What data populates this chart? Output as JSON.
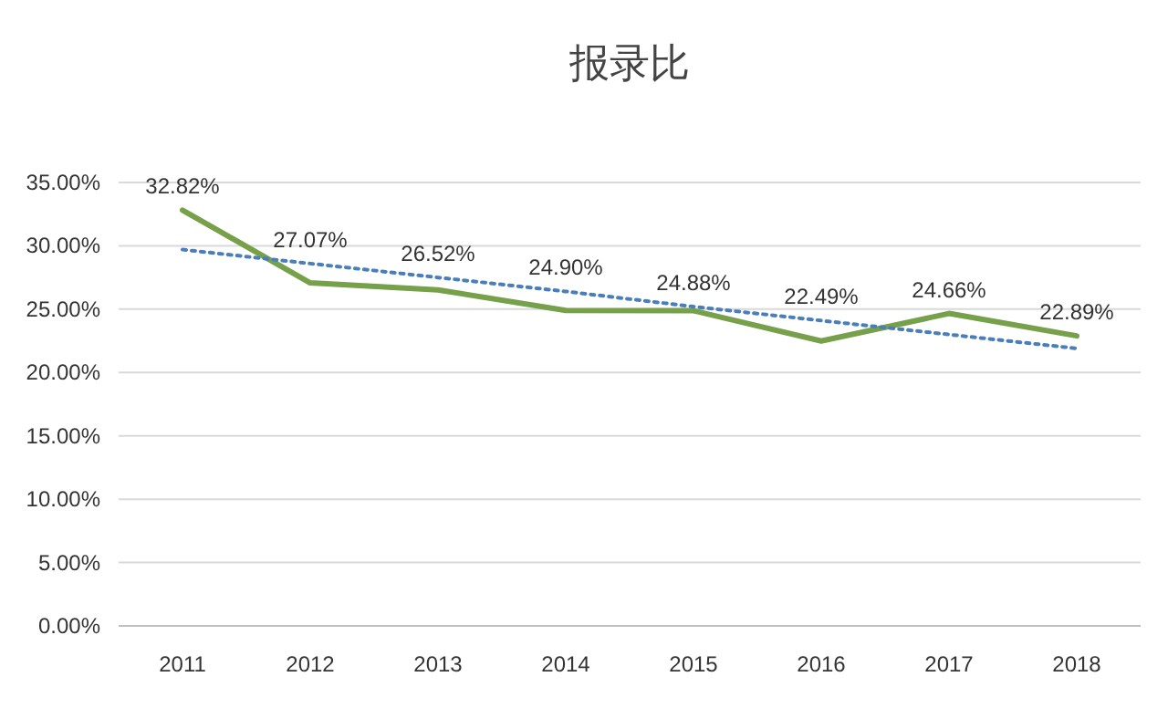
{
  "chart_data": {
    "type": "line",
    "title": "报录比",
    "categories": [
      "2011",
      "2012",
      "2013",
      "2014",
      "2015",
      "2016",
      "2017",
      "2018"
    ],
    "series": [
      {
        "color": "#77a04a",
        "values": [
          32.82,
          27.07,
          26.52,
          24.9,
          24.88,
          22.49,
          24.66,
          22.89
        ],
        "value_labels": [
          "32.82%",
          "27.07%",
          "26.52%",
          "24.90%",
          "24.88%",
          "22.49%",
          "24.66%",
          "22.89%"
        ]
      },
      {
        "type": "line",
        "color": "#4a7ebb",
        "line_style": "dotted",
        "values": [
          29.7,
          28.6,
          27.5,
          26.4,
          25.2,
          24.1,
          23.0,
          21.9
        ]
      }
    ],
    "ylim": [
      0,
      35
    ],
    "yticks": [
      {
        "value": 0,
        "label": "0.00%"
      },
      {
        "value": 5,
        "label": "5.00%"
      },
      {
        "value": 10,
        "label": "10.00%"
      },
      {
        "value": 15,
        "label": "15.00%"
      },
      {
        "value": 20,
        "label": "20.00%"
      },
      {
        "value": 25,
        "label": "25.00%"
      },
      {
        "value": 30,
        "label": "30.00%"
      },
      {
        "value": 35,
        "label": "35.00%"
      }
    ],
    "grid": "y",
    "marker": "none",
    "line_style": "solid"
  }
}
